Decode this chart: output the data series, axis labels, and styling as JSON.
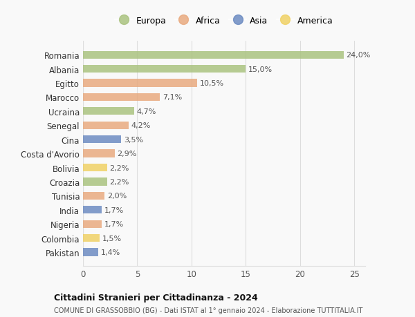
{
  "countries": [
    "Romania",
    "Albania",
    "Egitto",
    "Marocco",
    "Ucraina",
    "Senegal",
    "Cina",
    "Costa d'Avorio",
    "Bolivia",
    "Croazia",
    "Tunisia",
    "India",
    "Nigeria",
    "Colombia",
    "Pakistan"
  ],
  "values": [
    24.0,
    15.0,
    10.5,
    7.1,
    4.7,
    4.2,
    3.5,
    2.9,
    2.2,
    2.2,
    2.0,
    1.7,
    1.7,
    1.5,
    1.4
  ],
  "labels": [
    "24,0%",
    "15,0%",
    "10,5%",
    "7,1%",
    "4,7%",
    "4,2%",
    "3,5%",
    "2,9%",
    "2,2%",
    "2,2%",
    "2,0%",
    "1,7%",
    "1,7%",
    "1,5%",
    "1,4%"
  ],
  "regions": [
    "Europa",
    "Europa",
    "Africa",
    "Africa",
    "Europa",
    "Africa",
    "Asia",
    "Africa",
    "America",
    "Europa",
    "Africa",
    "Asia",
    "Africa",
    "America",
    "Asia"
  ],
  "colors": {
    "Europa": "#a8c17c",
    "Africa": "#e8a87c",
    "Asia": "#6888c0",
    "America": "#f0d060"
  },
  "xlim": [
    0,
    26
  ],
  "xticks": [
    0,
    5,
    10,
    15,
    20,
    25
  ],
  "title": "Cittadini Stranieri per Cittadinanza - 2024",
  "subtitle": "COMUNE DI GRASSOBBIO (BG) - Dati ISTAT al 1° gennaio 2024 - Elaborazione TUTTITALIA.IT",
  "background_color": "#f9f9f9",
  "grid_color": "#dddddd",
  "bar_height": 0.55,
  "legend_order": [
    "Europa",
    "Africa",
    "Asia",
    "America"
  ]
}
